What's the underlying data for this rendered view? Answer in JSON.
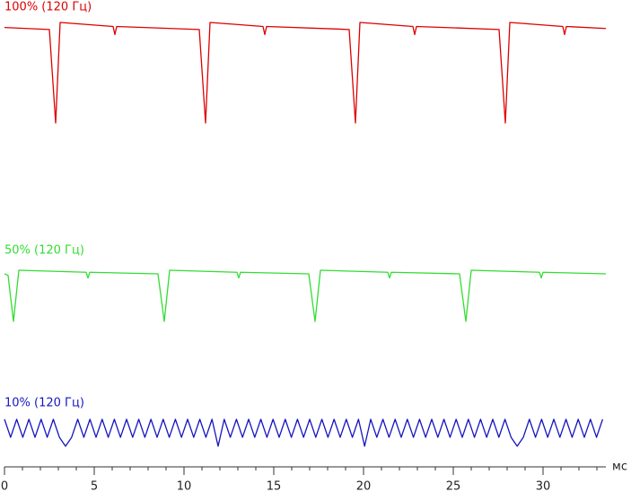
{
  "chart_data": {
    "type": "line",
    "x_label": "мс",
    "xlim": [
      0,
      33.5
    ],
    "xticks": [
      0,
      5,
      10,
      15,
      20,
      25,
      30
    ],
    "xminorticks": [
      0,
      1,
      2,
      3,
      4,
      5,
      6,
      7,
      8,
      9,
      10,
      11,
      12,
      13,
      14,
      15,
      16,
      17,
      18,
      19,
      20,
      21,
      22,
      23,
      24,
      25,
      26,
      27,
      28,
      29,
      30,
      31,
      32,
      33
    ],
    "ylim": [
      0,
      100
    ],
    "series": [
      {
        "name": "100% (120 Гц)",
        "color": "#dd0000",
        "x": [
          0,
          2.5,
          2.85,
          3.1,
          6.05,
          6.15,
          6.25,
          10.85,
          11.2,
          11.45,
          14.4,
          14.5,
          14.6,
          19.2,
          19.55,
          19.8,
          22.75,
          22.85,
          22.95,
          27.55,
          27.9,
          28.15,
          31.1,
          31.2,
          31.3,
          33.5
        ],
        "values": [
          95,
          93,
          0,
          100,
          96,
          88,
          96,
          93,
          0,
          100,
          96,
          88,
          96,
          93,
          0,
          100,
          96,
          88,
          96,
          93,
          0,
          100,
          96,
          88,
          96,
          94
        ]
      },
      {
        "name": "50% (120 Гц)",
        "color": "#33dd33",
        "x": [
          0,
          0.2,
          0.5,
          0.8,
          4.55,
          4.65,
          4.75,
          8.55,
          8.9,
          9.2,
          12.95,
          13.05,
          13.15,
          16.95,
          17.3,
          17.6,
          21.35,
          21.45,
          21.55,
          25.35,
          25.7,
          26,
          29.8,
          29.9,
          30,
          33.5
        ],
        "values": [
          93,
          90,
          0,
          100,
          96,
          85,
          96,
          93,
          0,
          100,
          96,
          85,
          96,
          93,
          0,
          100,
          96,
          85,
          96,
          93,
          0,
          100,
          96,
          85,
          96,
          93
        ]
      },
      {
        "name": "10% (120 Гц)",
        "color": "#1515c0",
        "x": [
          0,
          0.34,
          0.68,
          1.02,
          1.36,
          1.7,
          2.04,
          2.38,
          2.72,
          3.06,
          3.4,
          3.74,
          4.08,
          4.42,
          4.76,
          5.1,
          5.44,
          5.78,
          6.12,
          6.46,
          6.8,
          7.14,
          7.48,
          7.82,
          8.16,
          8.5,
          8.84,
          9.18,
          9.52,
          9.86,
          10.2,
          10.54,
          10.88,
          11.22,
          11.56,
          11.9,
          12.24,
          12.58,
          12.92,
          13.26,
          13.6,
          13.94,
          14.28,
          14.62,
          14.96,
          15.3,
          15.64,
          15.98,
          16.32,
          16.66,
          17,
          17.34,
          17.68,
          18.02,
          18.36,
          18.7,
          19.04,
          19.38,
          19.72,
          20.06,
          20.4,
          20.74,
          21.08,
          21.42,
          21.76,
          22.1,
          22.44,
          22.78,
          23.12,
          23.46,
          23.8,
          24.14,
          24.48,
          24.82,
          25.16,
          25.5,
          25.84,
          26.18,
          26.52,
          26.86,
          27.2,
          27.54,
          27.88,
          28.22,
          28.56,
          28.9,
          29.24,
          29.58,
          29.92,
          30.26,
          30.6,
          30.94,
          31.28,
          31.62,
          31.96,
          32.3,
          32.64,
          32.98,
          33.32
        ],
        "values": [
          100,
          33,
          100,
          33,
          100,
          33,
          100,
          33,
          100,
          33,
          0,
          33,
          100,
          33,
          100,
          33,
          100,
          33,
          100,
          33,
          100,
          33,
          100,
          33,
          100,
          33,
          100,
          33,
          100,
          33,
          100,
          33,
          100,
          33,
          100,
          0,
          100,
          33,
          100,
          33,
          100,
          33,
          100,
          33,
          100,
          33,
          100,
          33,
          100,
          33,
          100,
          33,
          100,
          33,
          100,
          33,
          100,
          33,
          100,
          0,
          100,
          33,
          100,
          33,
          100,
          33,
          100,
          33,
          100,
          33,
          100,
          33,
          100,
          33,
          100,
          33,
          100,
          33,
          100,
          33,
          100,
          33,
          100,
          33,
          0,
          33,
          100,
          33,
          100,
          33,
          100,
          33,
          100,
          33,
          100,
          33,
          100,
          33,
          100
        ]
      }
    ]
  }
}
